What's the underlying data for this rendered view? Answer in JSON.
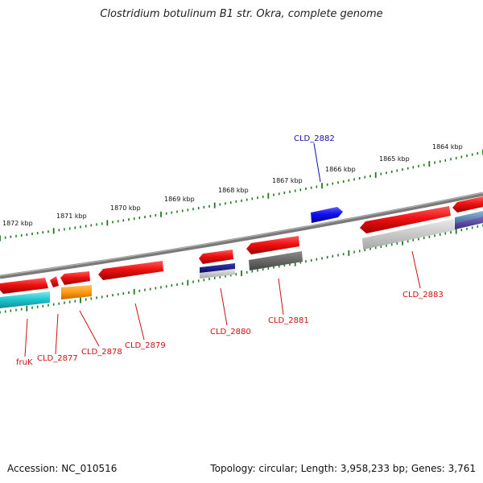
{
  "title": "Clostridium botulinum B1 str. Okra, complete genome",
  "footer": {
    "accession": "Accession: NC_010516",
    "summary": "Topology: circular; Length: 3,958,233 bp; Genes: 3,761"
  },
  "scale_labels": [
    "1872 kbp",
    "1871 kbp",
    "1870 kbp",
    "1869 kbp",
    "1868 kbp",
    "1867 kbp",
    "1866 kbp",
    "1865 kbp",
    "1864 kbp"
  ],
  "colors": {
    "backbone": "#7a7a7a",
    "ticks": "#1f7a1f",
    "gene_red": "#ee1111",
    "label_red": "#cc1111",
    "label_blue": "#1111aa"
  },
  "genes": [
    {
      "name": "fruK",
      "label": "fruK",
      "strand": "minus"
    },
    {
      "name": "CLD_2877",
      "label": "CLD_2877",
      "strand": "minus"
    },
    {
      "name": "CLD_2878",
      "label": "CLD_2878",
      "strand": "minus"
    },
    {
      "name": "CLD_2879",
      "label": "CLD_2879",
      "strand": "minus"
    },
    {
      "name": "CLD_2880",
      "label": "CLD_2880",
      "strand": "minus"
    },
    {
      "name": "CLD_2881",
      "label": "CLD_2881",
      "strand": "minus"
    },
    {
      "name": "CLD_2882",
      "label": "CLD_2882",
      "strand": "plus"
    },
    {
      "name": "CLD_2883",
      "label": "CLD_2883",
      "strand": "minus"
    }
  ]
}
